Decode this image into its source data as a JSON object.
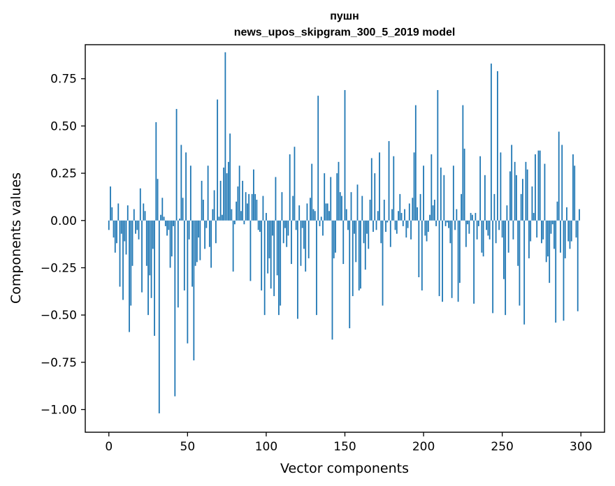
{
  "chart_data": {
    "type": "bar",
    "title_line1": "пушн",
    "title_line2": "news_upos_skipgram_300_5_2019 model",
    "xlabel": "Vector components",
    "ylabel": "Components values",
    "xlim": [
      -15,
      315
    ],
    "ylim": [
      -1.12,
      0.93
    ],
    "xticks": [
      0,
      50,
      100,
      150,
      200,
      250,
      300
    ],
    "yticks": [
      -1.0,
      -0.75,
      -0.5,
      -0.25,
      0.0,
      0.25,
      0.5,
      0.75
    ],
    "xtick_labels": [
      "0",
      "50",
      "100",
      "150",
      "200",
      "250",
      "300"
    ],
    "ytick_labels": [
      "−1.00",
      "−0.75",
      "−0.50",
      "−0.25",
      "0.00",
      "0.25",
      "0.50",
      "0.75"
    ],
    "bar_color": "#1f77b4",
    "values": [
      -0.05,
      0.18,
      0.07,
      -0.09,
      -0.17,
      -0.12,
      0.09,
      -0.35,
      -0.07,
      -0.42,
      -0.11,
      -0.18,
      0.08,
      -0.59,
      -0.45,
      -0.24,
      0.06,
      -0.07,
      -0.05,
      -0.1,
      0.17,
      -0.38,
      0.09,
      0.05,
      -0.24,
      -0.5,
      -0.29,
      -0.41,
      -0.15,
      -0.61,
      0.52,
      0.22,
      -1.02,
      0.03,
      0.12,
      0.02,
      -0.03,
      -0.08,
      -0.05,
      -0.25,
      -0.19,
      -0.03,
      -0.93,
      0.59,
      -0.46,
      0.01,
      0.4,
      0.12,
      -0.37,
      0.36,
      -0.65,
      -0.1,
      0.29,
      -0.35,
      -0.74,
      -0.24,
      -0.22,
      -0.09,
      -0.21,
      0.21,
      0.11,
      -0.15,
      -0.04,
      0.29,
      -0.14,
      -0.25,
      0.06,
      0.16,
      -0.12,
      0.64,
      0.02,
      0.21,
      0.03,
      0.28,
      0.89,
      0.25,
      0.31,
      0.46,
      0.06,
      -0.27,
      -0.02,
      0.1,
      0.18,
      0.29,
      0.05,
      0.21,
      -0.02,
      0.15,
      0.09,
      0.14,
      -0.32,
      0.14,
      0.27,
      0.14,
      0.11,
      -0.05,
      -0.06,
      -0.37,
      0.13,
      -0.5,
      0.04,
      -0.28,
      -0.2,
      -0.36,
      -0.08,
      -0.4,
      0.23,
      -0.29,
      -0.5,
      -0.45,
      0.15,
      -0.12,
      -0.04,
      -0.14,
      -0.08,
      0.35,
      -0.23,
      0.13,
      0.39,
      -0.05,
      -0.52,
      0.08,
      -0.24,
      -0.04,
      -0.15,
      -0.27,
      0.09,
      -0.2,
      0.12,
      0.3,
      0.06,
      0.05,
      -0.5,
      0.66,
      -0.03,
      0.02,
      -0.08,
      0.25,
      0.09,
      0.09,
      0.05,
      0.23,
      -0.63,
      -0.2,
      -0.17,
      0.25,
      0.31,
      0.15,
      0.13,
      -0.23,
      0.69,
      0.06,
      -0.05,
      -0.57,
      0.15,
      -0.4,
      -0.07,
      -0.22,
      0.19,
      -0.37,
      -0.36,
      0.13,
      -0.12,
      -0.26,
      -0.07,
      -0.15,
      0.11,
      0.33,
      -0.06,
      0.25,
      -0.05,
      0.05,
      0.36,
      -0.12,
      -0.45,
      0.11,
      -0.06,
      -0.01,
      0.42,
      -0.14,
      0.06,
      0.34,
      -0.05,
      -0.07,
      0.05,
      0.14,
      0.04,
      -0.03,
      0.06,
      -0.09,
      -0.04,
      0.09,
      -0.1,
      0.12,
      0.36,
      0.61,
      0.07,
      -0.3,
      0.14,
      -0.37,
      0.29,
      -0.08,
      -0.11,
      -0.06,
      0.03,
      0.35,
      0.08,
      0.11,
      -0.03,
      0.69,
      -0.4,
      0.28,
      -0.43,
      0.24,
      -0.03,
      -0.01,
      -0.04,
      -0.12,
      -0.41,
      0.29,
      -0.05,
      0.06,
      -0.43,
      -0.33,
      0.14,
      0.61,
      0.38,
      -0.14,
      -0.02,
      -0.07,
      0.04,
      0.03,
      -0.44,
      0.04,
      -0.1,
      -0.03,
      0.34,
      -0.17,
      -0.19,
      0.24,
      -0.05,
      -0.08,
      -0.1,
      0.83,
      -0.49,
      0.14,
      -0.12,
      0.79,
      -0.05,
      0.36,
      -0.09,
      -0.31,
      -0.5,
      0.08,
      -0.17,
      0.26,
      0.4,
      -0.1,
      0.31,
      0.24,
      -0.24,
      -0.45,
      0.14,
      0.22,
      -0.55,
      0.31,
      0.27,
      -0.2,
      -0.11,
      0.18,
      0.04,
      0.35,
      -0.09,
      0.37,
      0.37,
      -0.12,
      -0.1,
      0.3,
      -0.22,
      -0.19,
      -0.33,
      -0.07,
      -0.02,
      -0.15,
      -0.54,
      0.1,
      0.47,
      -0.17,
      0.4,
      -0.53,
      -0.2,
      0.07,
      -0.11,
      -0.15,
      -0.11,
      0.35,
      0.29,
      -0.09,
      -0.48,
      0.06
    ]
  }
}
